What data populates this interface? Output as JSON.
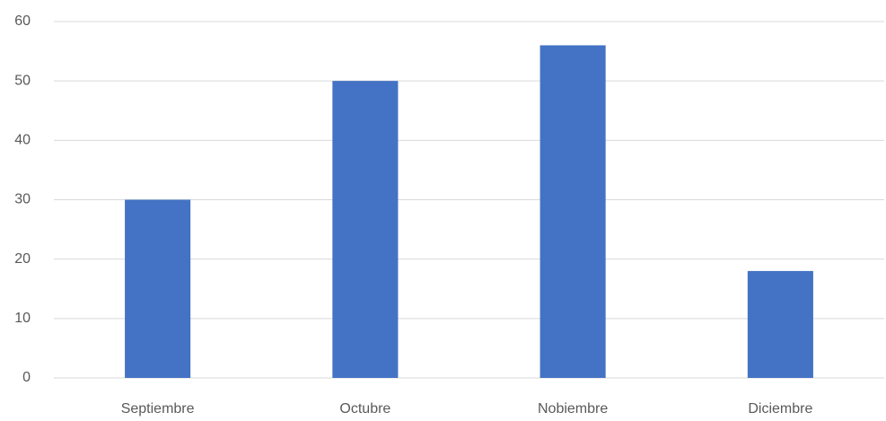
{
  "chart_data": {
    "type": "bar",
    "categories": [
      "Septiembre",
      "Octubre",
      "Nobiembre",
      "Diciembre"
    ],
    "values": [
      30,
      50,
      56,
      18
    ],
    "color": "#4472c4",
    "ylim": [
      0,
      60
    ],
    "yticks": [
      0,
      10,
      20,
      30,
      40,
      50,
      60
    ],
    "grid": true
  }
}
